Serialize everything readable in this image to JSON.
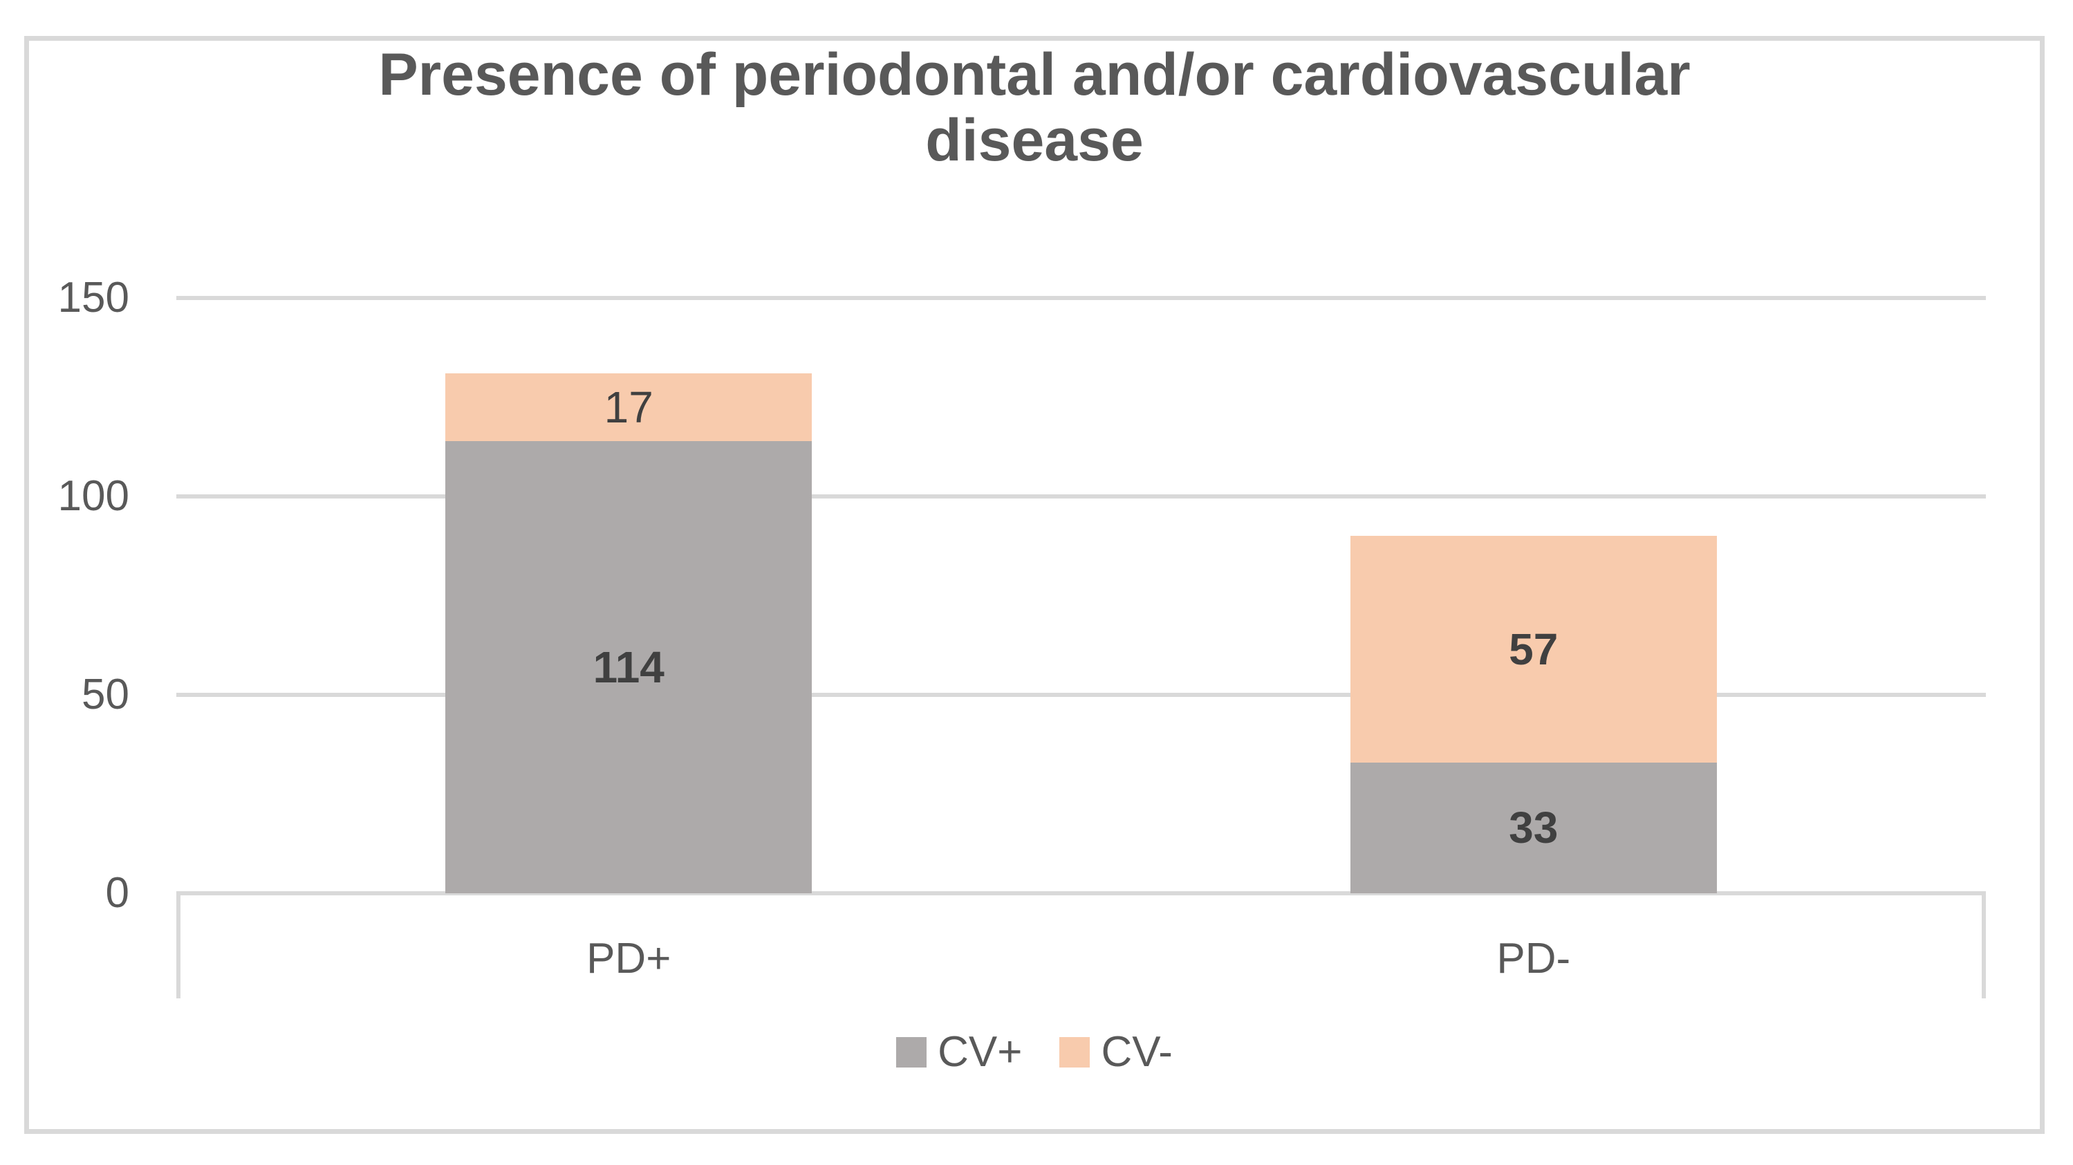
{
  "chart_data": {
    "type": "bar",
    "stacked": true,
    "title": "Presence of periodontal and/or cardiovascular disease",
    "title_lines": [
      "Presence of periodontal and/or cardiovascular",
      "disease"
    ],
    "categories": [
      "PD+",
      "PD-"
    ],
    "series": [
      {
        "name": "CV+",
        "color": "#ADAAAA",
        "values": [
          114,
          33
        ],
        "label_bold": [
          true,
          true
        ]
      },
      {
        "name": "CV-",
        "color": "#F8CBAD",
        "values": [
          17,
          57
        ],
        "label_bold": [
          false,
          true
        ]
      }
    ],
    "stack_totals": [
      131,
      90
    ],
    "ylim": [
      0,
      150
    ],
    "yticks": [
      0,
      50,
      100,
      150
    ],
    "grid": true,
    "legend_position": "bottom",
    "colors": {
      "grid": "#D9D9D9",
      "frame": "#D9D9D9",
      "title_text": "#595959",
      "axis_text": "#595959",
      "data_label_text": "#404040"
    }
  }
}
